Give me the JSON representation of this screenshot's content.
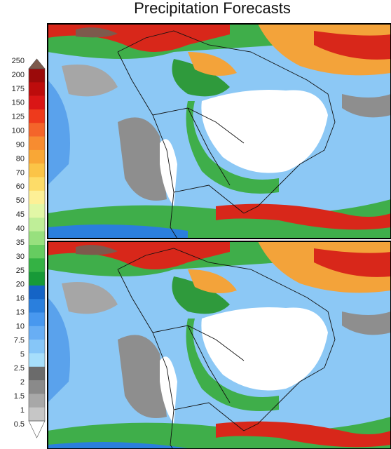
{
  "title": "Precipitation Forecasts",
  "colorbar": {
    "labels": [
      "250",
      "200",
      "175",
      "150",
      "125",
      "100",
      "90",
      "80",
      "70",
      "60",
      "50",
      "45",
      "40",
      "35",
      "30",
      "25",
      "20",
      "16",
      "13",
      "10",
      "7.5",
      "5",
      "2.5",
      "2",
      "1.5",
      "1",
      "0.5"
    ],
    "over_color": "#7d5a4c",
    "under_color": "#ffffff",
    "colors": [
      "#9b0a0a",
      "#bd0c0c",
      "#da1616",
      "#ee3a1c",
      "#f4652a",
      "#f78c30",
      "#f9a736",
      "#fbc447",
      "#fddc68",
      "#fdf096",
      "#e2f7a6",
      "#bfee98",
      "#98e07e",
      "#66cc60",
      "#34b244",
      "#179a38",
      "#1564c6",
      "#2a7fdd",
      "#4898ef",
      "#68aef4",
      "#86c6f8",
      "#a6defb",
      "#6b6b6b",
      "#8a8a8a",
      "#a8a8a8",
      "#c6c6c6"
    ]
  }
}
